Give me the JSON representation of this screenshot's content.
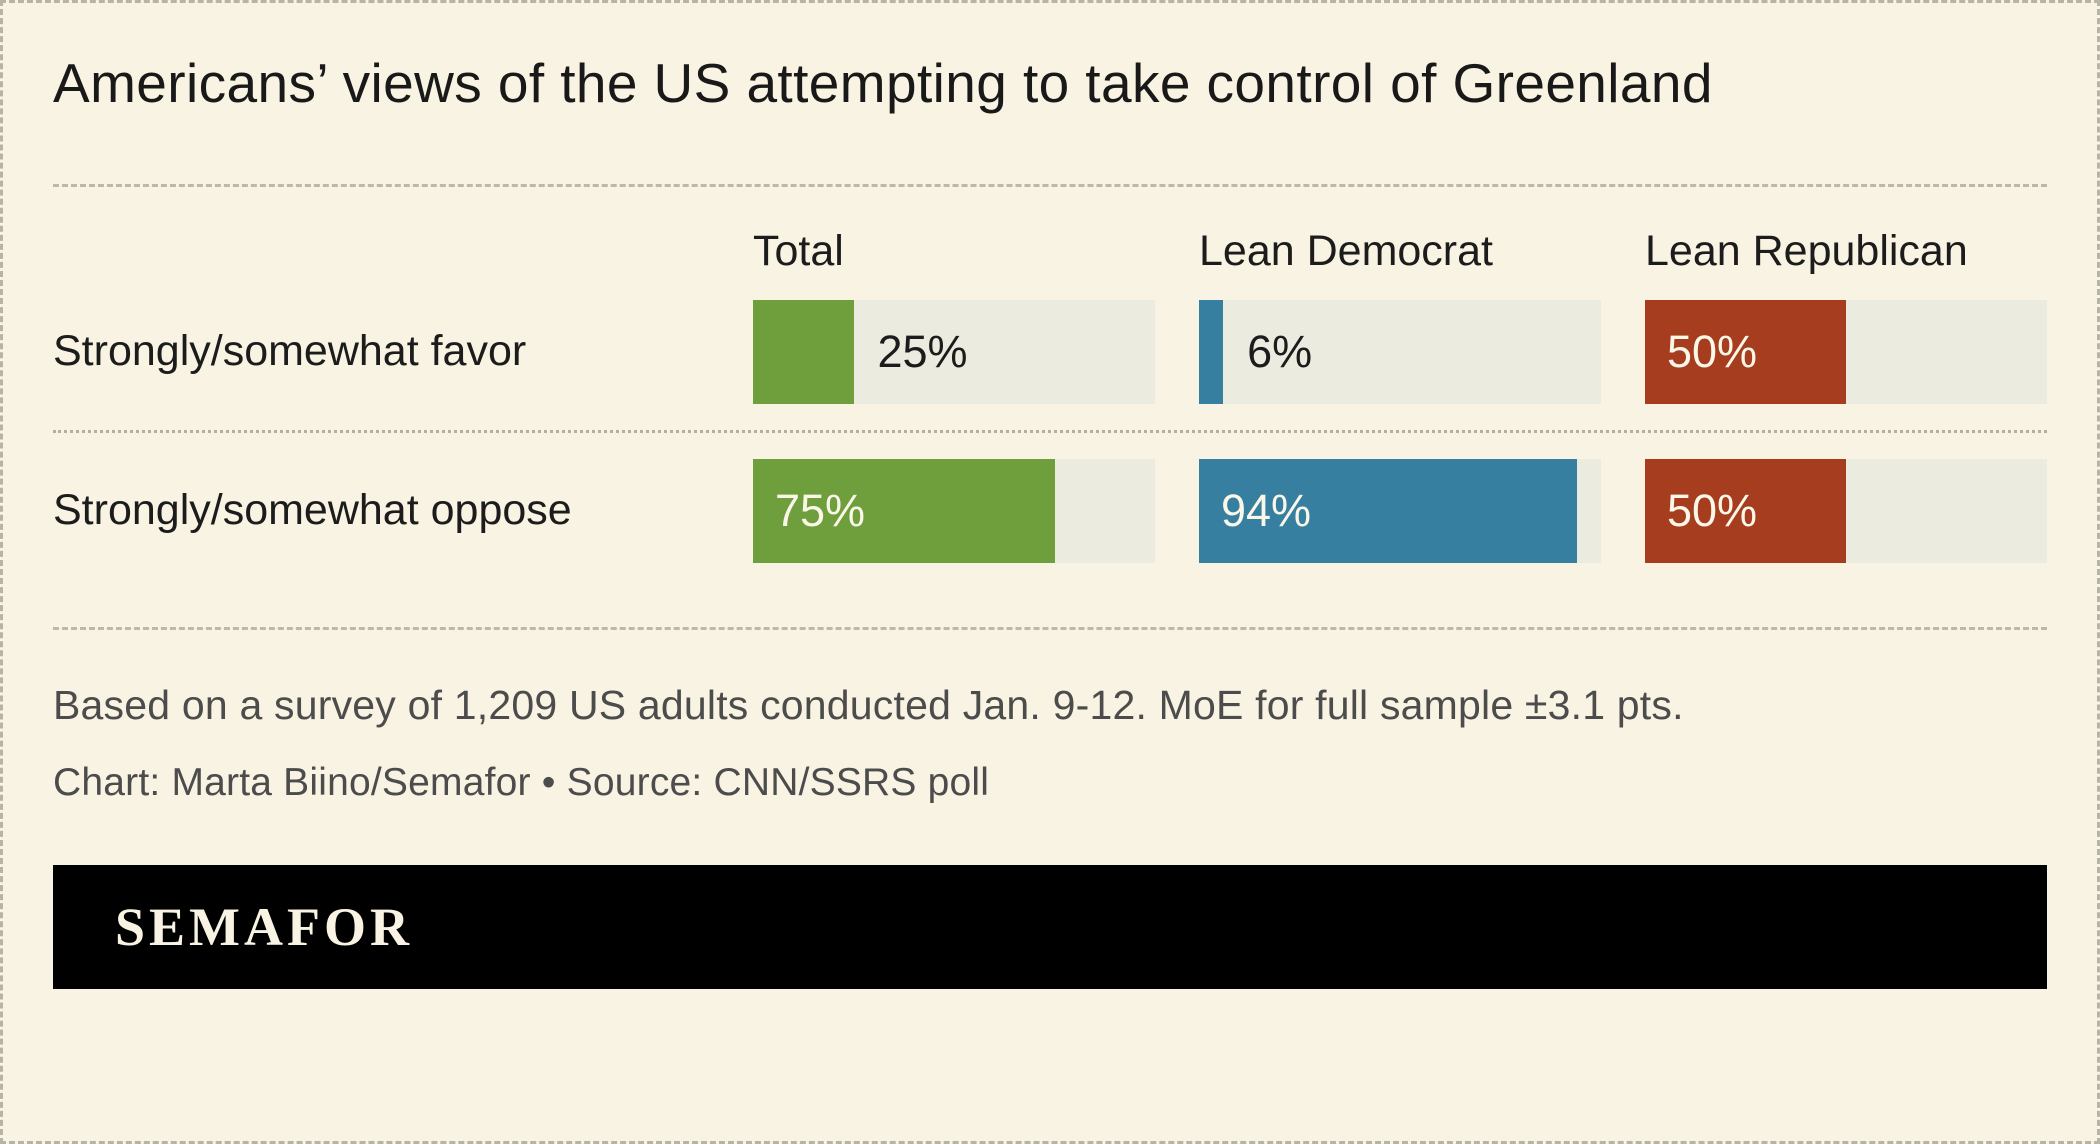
{
  "chart_data": {
    "type": "bar",
    "orientation": "horizontal",
    "title": "Americans’ views of the US attempting to take control of Greenland",
    "categories": [
      "Strongly/somewhat favor",
      "Strongly/somewhat oppose"
    ],
    "series": [
      {
        "name": "Total",
        "values": [
          25,
          75
        ],
        "color": "#6f9e3c"
      },
      {
        "name": "Lean Democrat",
        "values": [
          6,
          94
        ],
        "color": "#377fa1"
      },
      {
        "name": "Lean Republican",
        "values": [
          50,
          50
        ],
        "color": "#a63d1f"
      }
    ],
    "value_suffix": "%",
    "xlim": [
      0,
      100
    ],
    "grid": false,
    "legend_position": "none",
    "note": "Based on a survey of 1,209 US adults conducted Jan. 9-12. MoE for full sample ±3.1 pts.",
    "credit": "Chart: Marta Biino/Semafor • Source: CNN/SSRS poll"
  },
  "footer": {
    "logo": "SEMAFOR"
  },
  "colors": {
    "background": "#f8f3e2",
    "bar_track": "#ecebdf",
    "text": "#1c1c1c",
    "muted_text": "#4c4c4c",
    "footer_background": "#000000",
    "logo_text": "#f8f3e2"
  }
}
